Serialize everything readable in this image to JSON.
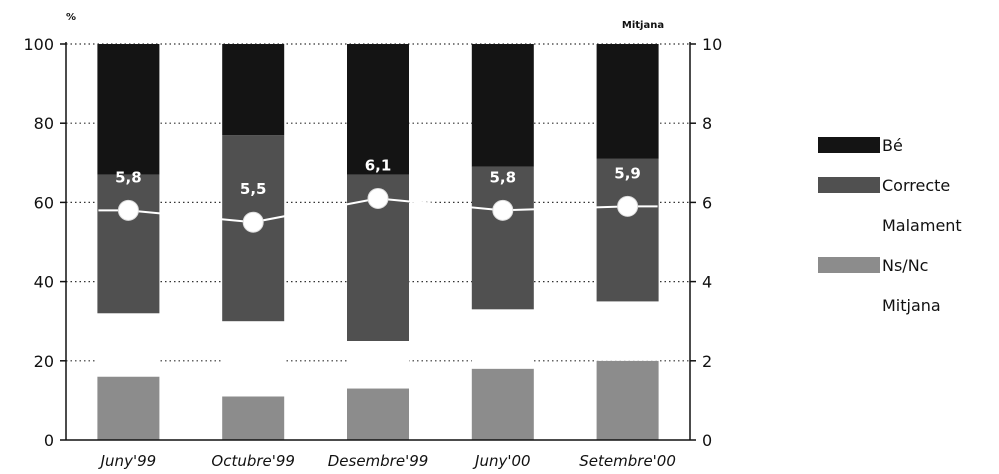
{
  "chart_data": {
    "type": "bar",
    "stacked": true,
    "categories": [
      "Juny'99",
      "Octubre'99",
      "Desembre'99",
      "Juny'00",
      "Setembre'00"
    ],
    "series": [
      {
        "name": "Bé",
        "values": [
          33,
          23,
          33,
          31,
          29
        ],
        "color": "#141414"
      },
      {
        "name": "Correcte",
        "values": [
          35,
          47,
          42,
          36,
          36
        ],
        "color": "#505050"
      },
      {
        "name": "Malament",
        "values": [
          16,
          19,
          12,
          15,
          15
        ],
        "color": "#ffffff"
      },
      {
        "name": "Ns/Nc",
        "values": [
          16,
          11,
          13,
          18,
          20
        ],
        "color": "#8c8c8c"
      }
    ],
    "mitjana": {
      "name": "Mitjana",
      "values": [
        5.8,
        5.5,
        6.1,
        5.8,
        5.9
      ],
      "labels": [
        "5,8",
        "5,5",
        "6,1",
        "5,8",
        "5,9"
      ]
    },
    "y_left": {
      "label": "%",
      "ticks": [
        0,
        20,
        40,
        60,
        80,
        100
      ],
      "range": [
        0,
        100
      ]
    },
    "y_right": {
      "label": "Mitjana",
      "ticks": [
        0,
        2,
        4,
        6,
        8,
        10
      ],
      "range": [
        0,
        10
      ]
    },
    "grid": "dotted horizontal",
    "legend_position": "right"
  }
}
